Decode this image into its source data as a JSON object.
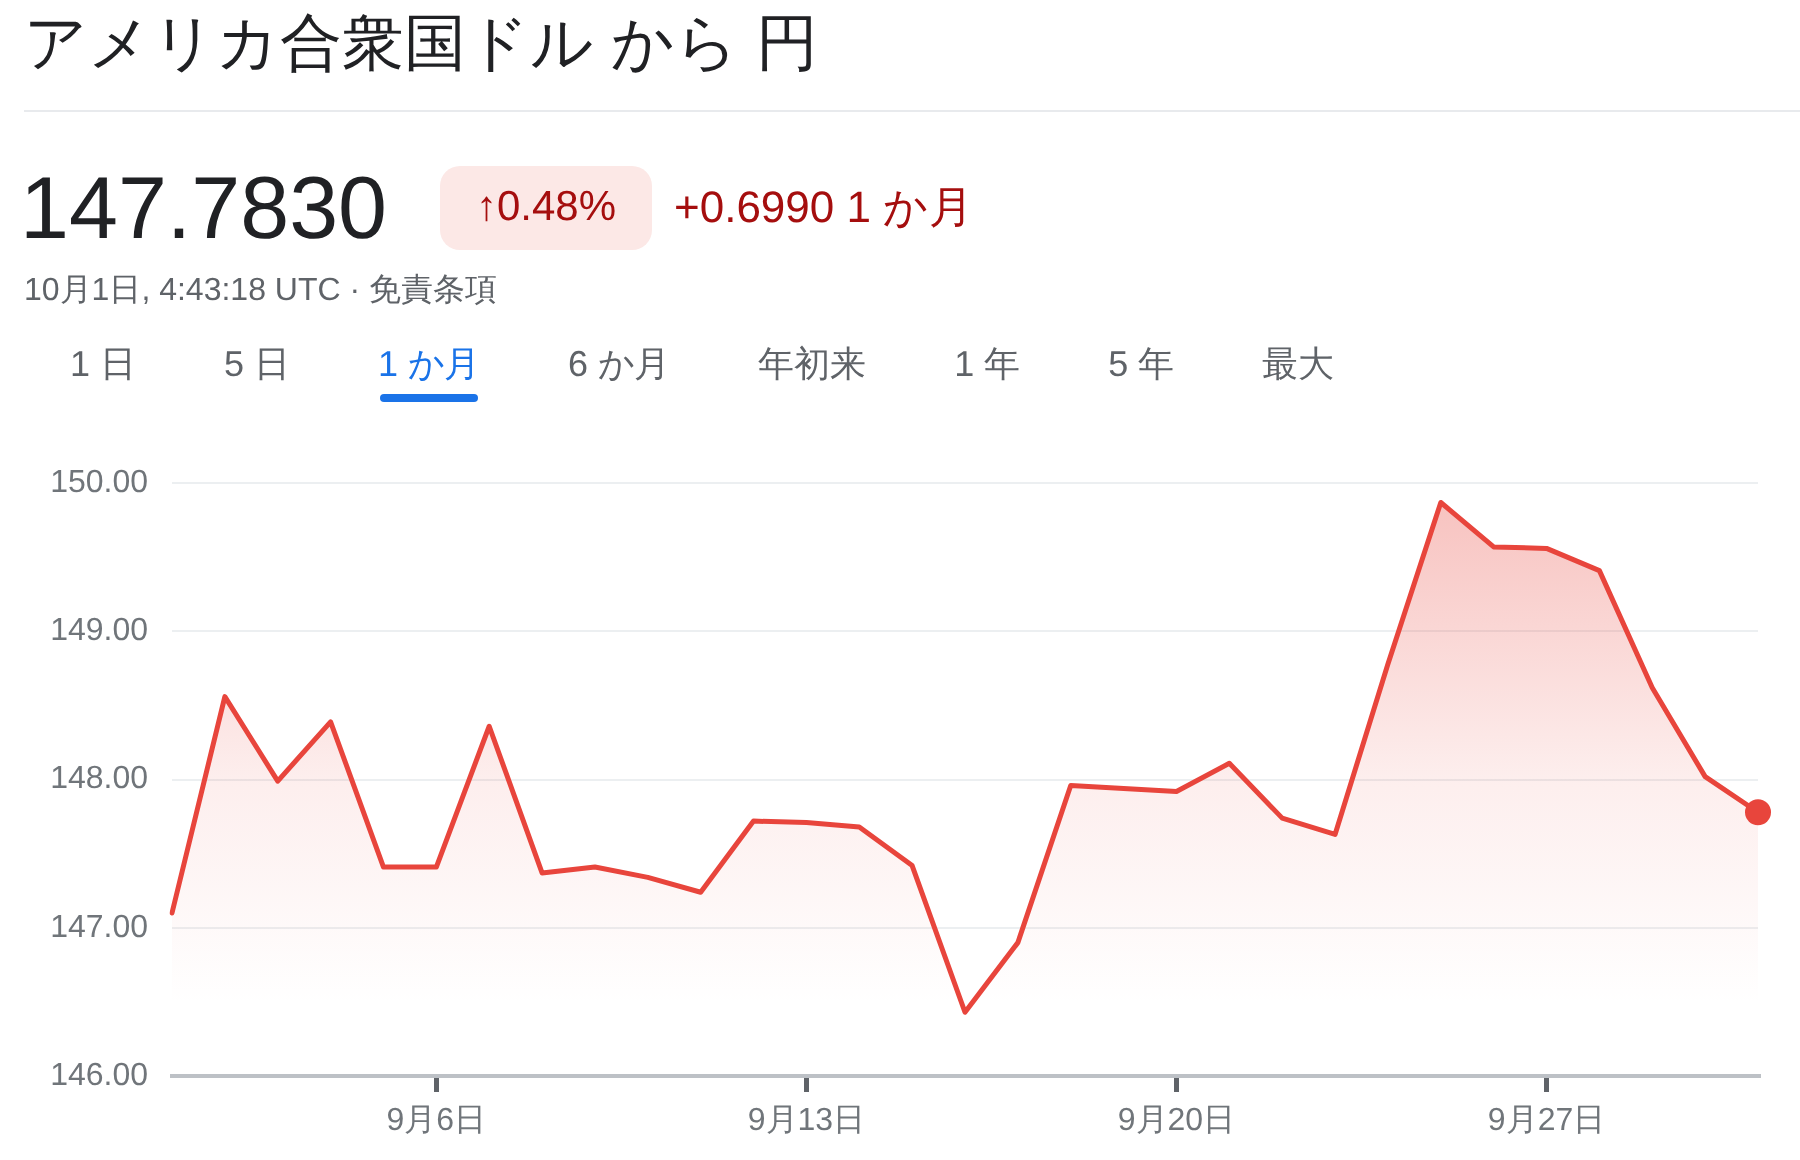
{
  "chart_data": {
    "type": "area",
    "title": "アメリカ合衆国ドル から 円",
    "subtitle": "147.7830",
    "annotations": [
      "↑0.48%",
      "+0.6990 1 か月",
      "10月1日, 4:43:18 UTC · 免責条項",
      "1 日",
      "5 日",
      "1 か月",
      "6 か月",
      "年初来",
      "1 年",
      "5 年",
      "最大"
    ],
    "categories": [
      null,
      null,
      null,
      null,
      null,
      "9月6日",
      null,
      null,
      null,
      null,
      null,
      null,
      "9月13日",
      null,
      null,
      null,
      null,
      null,
      null,
      "9月20日",
      null,
      null,
      null,
      null,
      null,
      null,
      "9月27日",
      null,
      null,
      null,
      null
    ],
    "series": [
      {
        "color": "#e8453c",
        "marker": "none",
        "line_style": "solid",
        "values": [
          147.1,
          148.56,
          147.99,
          148.39,
          147.41,
          147.41,
          148.36,
          147.37,
          147.41,
          147.34,
          147.24,
          147.72,
          147.71,
          147.68,
          147.42,
          146.43,
          146.9,
          147.96,
          147.94,
          147.92,
          148.11,
          147.74,
          147.63,
          148.78,
          149.87,
          149.57,
          149.56,
          149.41,
          148.62,
          148.02,
          147.78
        ]
      },
      {
        "type": "scatter",
        "color": "#e8453c",
        "marker": "circle",
        "values": [
          null,
          null,
          null,
          null,
          null,
          null,
          null,
          null,
          null,
          null,
          null,
          null,
          null,
          null,
          null,
          null,
          null,
          null,
          null,
          null,
          null,
          null,
          null,
          null,
          null,
          null,
          null,
          null,
          null,
          null,
          147.78
        ]
      }
    ],
    "ylim": [
      146,
      150
    ],
    "yticks": [
      {
        "value": 146,
        "label": "146.00"
      },
      {
        "value": 147,
        "label": "147.00"
      },
      {
        "value": 148,
        "label": "148.00"
      },
      {
        "value": 149,
        "label": "149.00"
      },
      {
        "value": 150,
        "label": "150.00"
      }
    ],
    "grid": "y",
    "legend": false
  }
}
